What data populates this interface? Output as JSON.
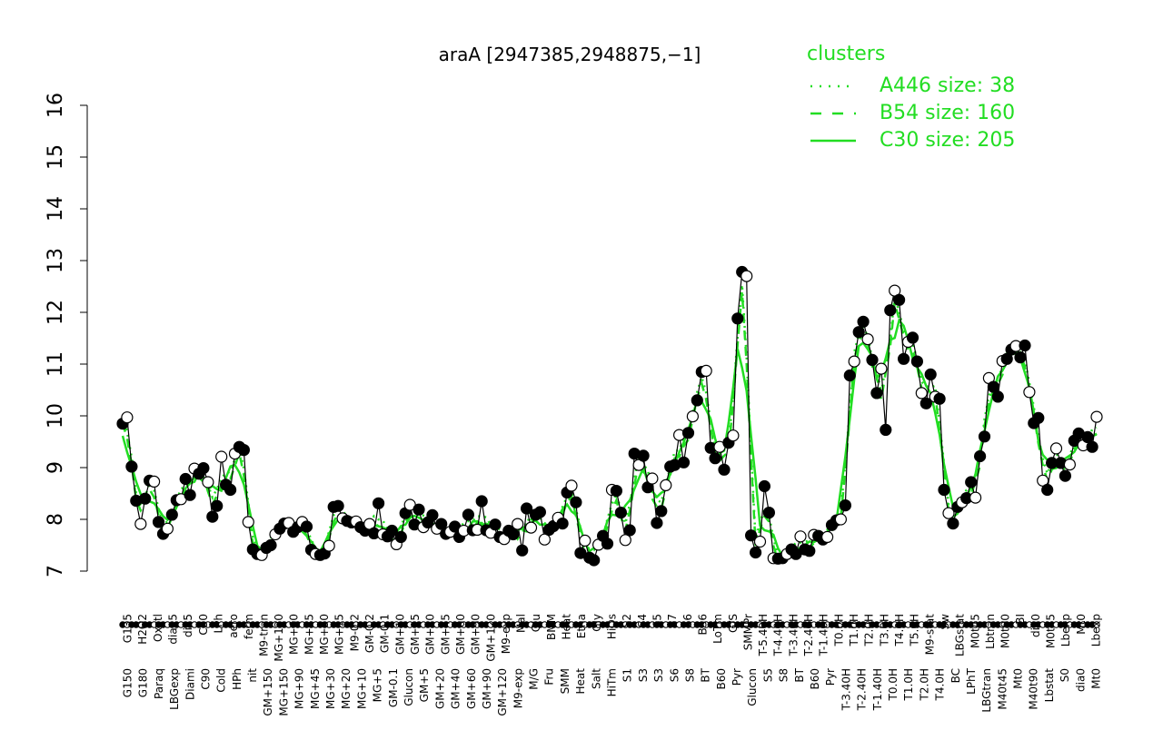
{
  "chart_data": {
    "type": "line",
    "title": "araA [2947385,2948875,−1]",
    "xlabel": "",
    "ylabel": "",
    "ylim": [
      7,
      16
    ],
    "yticks": [
      7,
      8,
      9,
      10,
      11,
      12,
      13,
      14,
      15,
      16
    ],
    "grid": false,
    "legend": {
      "title": "clusters",
      "placement": "top-right",
      "color": "#22dd22",
      "entries": [
        {
          "label": "A446 size: 38",
          "style": "dotted"
        },
        {
          "label": "B54 size: 160",
          "style": "dashed"
        },
        {
          "label": "C30 size: 205",
          "style": "solid"
        }
      ]
    },
    "colors": {
      "cluster_lines": "#22dd22",
      "points_fill_filled": "#000000",
      "points_fill_open": "#ffffff",
      "axis": "#000000"
    },
    "upper_tick_labels": [
      "G135",
      "H2O2",
      "Oxctl",
      "dia15",
      "dia5",
      "C30",
      "LPh",
      "aero",
      "ferm",
      "M9-tran",
      "MG+120",
      "MG+60",
      "MG+45",
      "MG+30",
      "MG+15",
      "M9-0.2",
      "GM-0.2",
      "GM-0.1",
      "GM+10",
      "GM+15",
      "GM+30",
      "GM+45",
      "GM+60",
      "GM+90",
      "GM+120",
      "M9-exp",
      "Mal",
      "Glu",
      "BMM",
      "Heat",
      "Etha",
      "Gly",
      "HiOs",
      "S2",
      "S4",
      "S5",
      "S7",
      "S6",
      "B36",
      "LoTm",
      "G/S",
      "SMMPr",
      "T-5.40H",
      "T-4.40H",
      "T-3.40H",
      "T-2.40H",
      "T-1.40H",
      "T0.0H",
      "T1.0H",
      "T2.0H",
      "T3.0H",
      "T4.0H",
      "T5.0H",
      "M9-stat",
      "Sw",
      "LBGstat",
      "M0t45",
      "Lbtran",
      "M0t90",
      "BI",
      "dia0",
      "M0t45",
      "Lbexp",
      "Mt0",
      "Lbexp"
    ],
    "lower_tick_labels": [
      "G150",
      "G180",
      "Paraq",
      "LBGexp",
      "Diami",
      "C90",
      "Cold",
      "HPh",
      "nit",
      "GM+150",
      "MG+150",
      "MG+90",
      "MG+45",
      "MG+30",
      "MG+20",
      "MG+10",
      "MG+5",
      "GM-0.1",
      "Glucon",
      "GM+5",
      "GM+20",
      "GM+40",
      "GM+60",
      "GM+90",
      "GM+120",
      "M9-exp",
      "M/G",
      "Fru",
      "SMM",
      "Heat",
      "Salt",
      "HiTm",
      "S1",
      "S3",
      "S3",
      "S6",
      "S8",
      "BT",
      "B60",
      "Pyr",
      "Glucon",
      "S5",
      "S8",
      "BT",
      "B60",
      "Pyr",
      "T-3.40H",
      "T-2.40H",
      "T-1.40H",
      "T0.0H",
      "T1.0H",
      "T2.0H",
      "T4.0H",
      "BC",
      "LPhT",
      "LBGtran",
      "M40t45",
      "Mt0",
      "M40t90",
      "Lbstat",
      "S0",
      "dia0",
      "Mt0"
    ],
    "series": [
      {
        "name": "points",
        "values": [
          9.85,
          9.97,
          9.02,
          8.36,
          7.91,
          8.4,
          8.75,
          8.73,
          7.95,
          7.72,
          7.82,
          8.09,
          8.37,
          8.39,
          8.78,
          8.47,
          8.98,
          8.88,
          8.99,
          8.72,
          8.05,
          8.26,
          9.21,
          8.67,
          8.57,
          9.27,
          9.4,
          9.34,
          7.95,
          7.42,
          7.33,
          7.31,
          7.45,
          7.5,
          7.71,
          7.82,
          7.92,
          7.93,
          7.76,
          7.85,
          7.95,
          7.86,
          7.41,
          7.33,
          7.31,
          7.34,
          7.49,
          8.24,
          8.26,
          8.02,
          7.97,
          7.94,
          7.96,
          7.85,
          7.78,
          7.91,
          7.73,
          8.31,
          7.71,
          7.67,
          7.78,
          7.52,
          7.66,
          8.12,
          8.28,
          7.9,
          8.19,
          7.85,
          7.94,
          8.08,
          7.82,
          7.91,
          7.72,
          7.76,
          7.86,
          7.66,
          7.78,
          8.09,
          7.79,
          7.8,
          8.35,
          7.79,
          7.74,
          7.9,
          7.66,
          7.62,
          7.78,
          7.71,
          7.91,
          7.4,
          8.21,
          7.84,
          8.09,
          8.14,
          7.61,
          7.8,
          7.87,
          8.03,
          7.92,
          8.52,
          8.65,
          8.33,
          7.35,
          7.59,
          7.26,
          7.21,
          7.51,
          7.68,
          7.53,
          8.57,
          8.55,
          8.13,
          7.6,
          7.79,
          9.27,
          9.05,
          9.23,
          8.62,
          8.79,
          7.93,
          8.16,
          8.66,
          9.02,
          9.05,
          9.63,
          9.1,
          9.67,
          9.99,
          10.3,
          10.85,
          10.87,
          9.38,
          9.18,
          9.4,
          8.96,
          9.48,
          9.62,
          11.88,
          12.78,
          12.7,
          7.69,
          7.36,
          7.57,
          8.64,
          8.13,
          7.25,
          7.24,
          7.25,
          7.33,
          7.42,
          7.33,
          7.67,
          7.42,
          7.39,
          7.7,
          7.68,
          7.61,
          7.66,
          7.89,
          7.98,
          8.0,
          8.27,
          10.78,
          11.05,
          11.62,
          11.82,
          11.48,
          11.08,
          10.44,
          10.91,
          9.73,
          12.04,
          12.42,
          12.24,
          11.1,
          11.43,
          11.51,
          11.05,
          10.44,
          10.24,
          10.8,
          10.37,
          10.33,
          8.57,
          8.12,
          7.92,
          8.24,
          8.33,
          8.41,
          8.72,
          8.42,
          9.22,
          9.6,
          10.73,
          10.56,
          10.37,
          11.06,
          11.1,
          11.28,
          11.35,
          11.13,
          11.36,
          10.46,
          9.86,
          9.96,
          8.75,
          8.57,
          9.09,
          9.37,
          9.09,
          8.84,
          9.06,
          9.52,
          9.66,
          9.43,
          9.59,
          9.4,
          9.98
        ]
      },
      {
        "name": "",
        "values": []
      }
    ]
  }
}
